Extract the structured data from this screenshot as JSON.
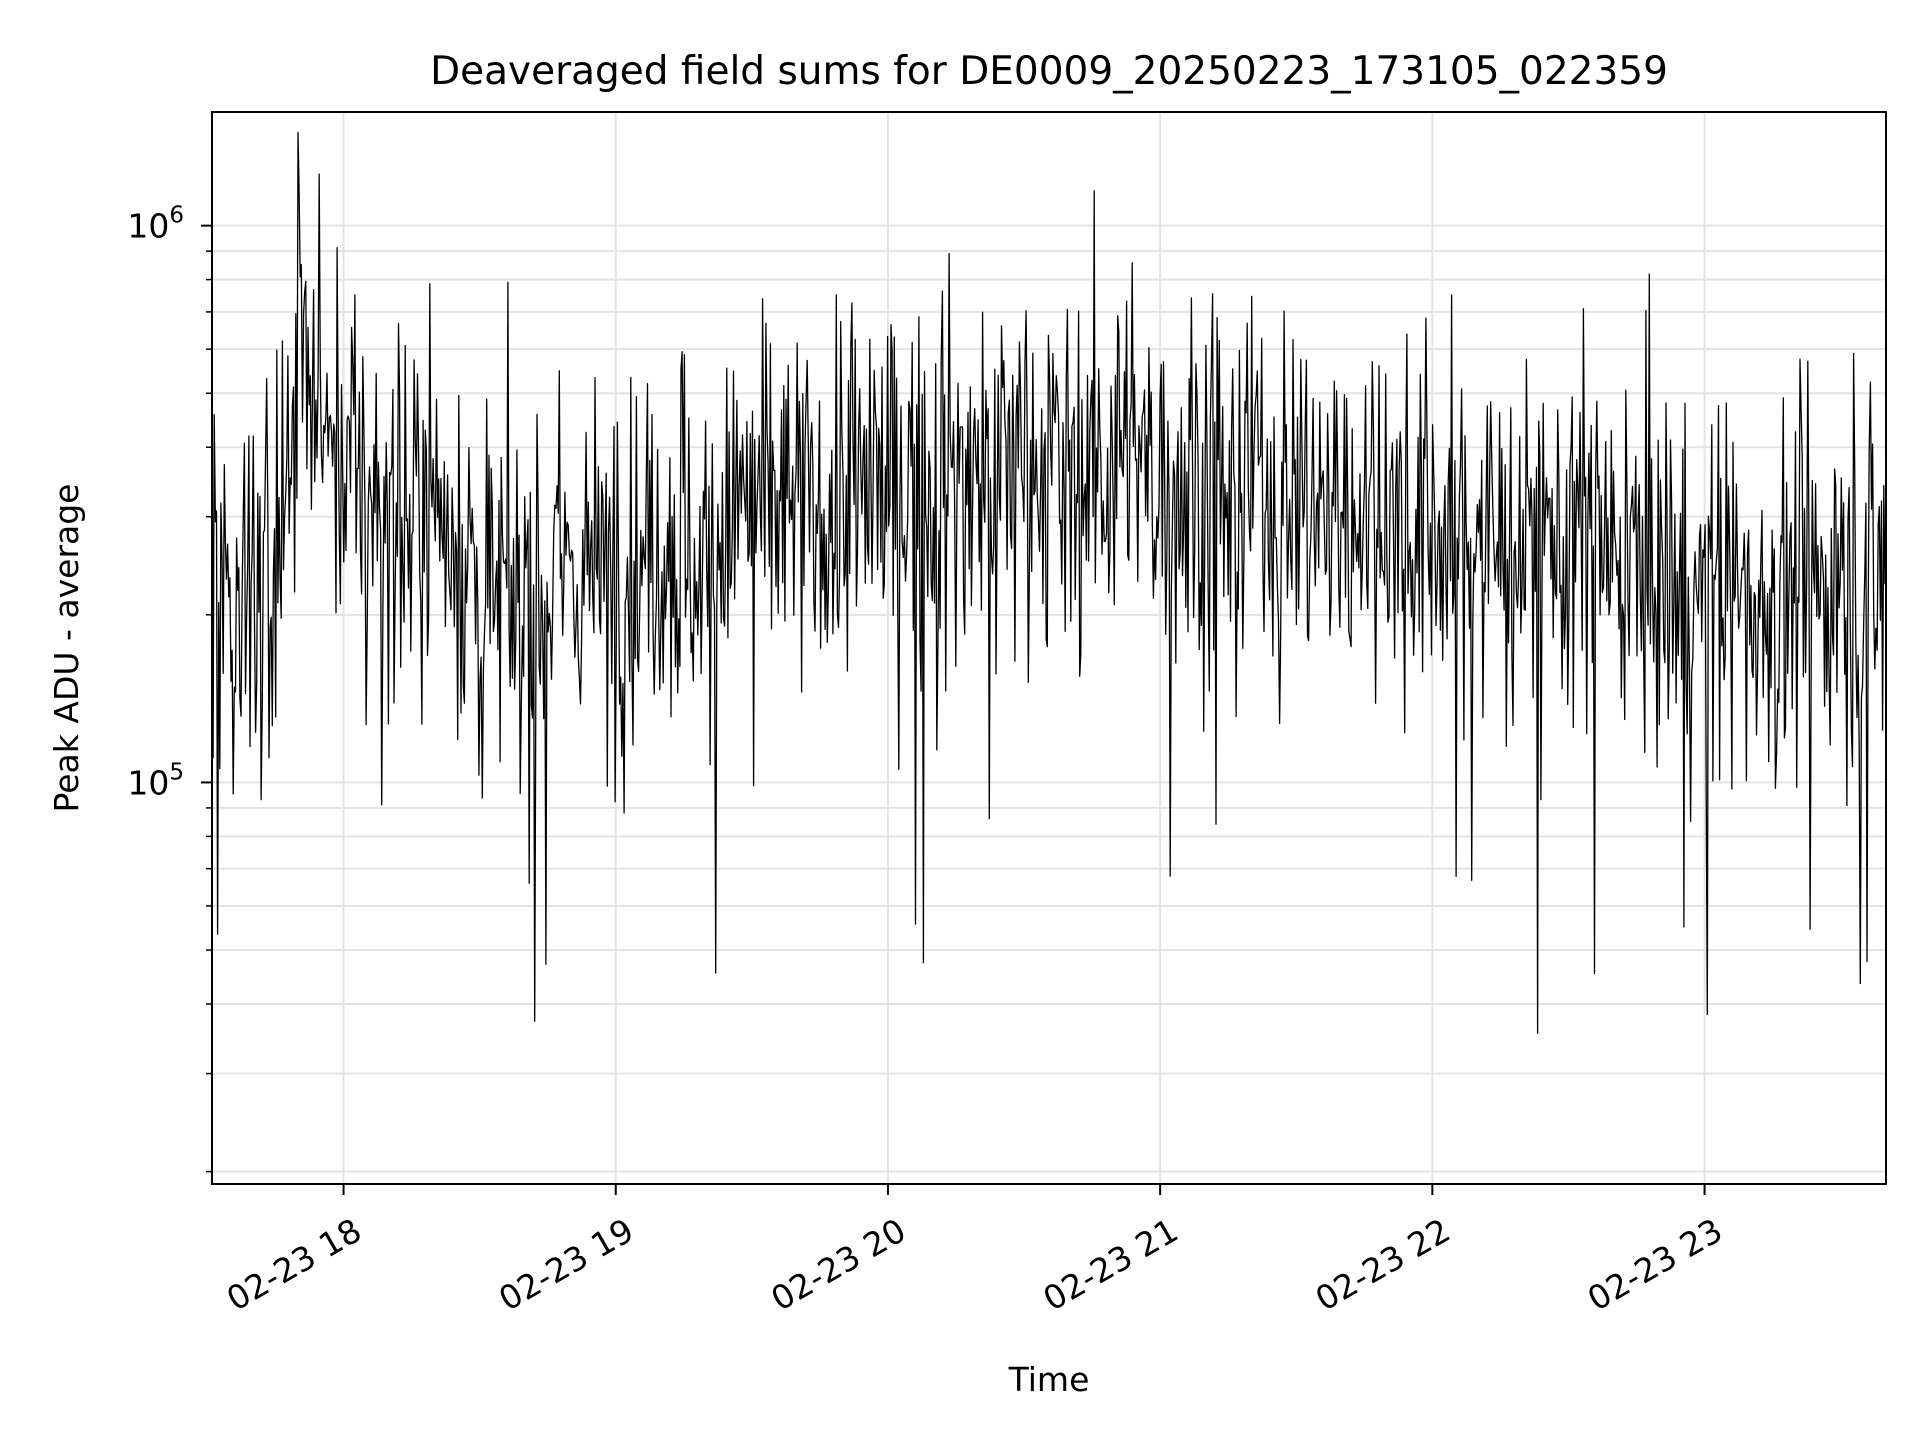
{
  "chart_data": {
    "type": "line",
    "title": "Deaveraged field sums for DE0009_20250223_173105_022359",
    "xlabel": "Time",
    "ylabel": "Peak ADU - average",
    "x_scale": "time",
    "y_scale": "log",
    "xlim": [
      "2025-02-23 17:31",
      "2025-02-23 23:40"
    ],
    "ylim": [
      19000,
      1600000
    ],
    "x_ticks": [
      {
        "value": "2025-02-23 18:00",
        "label": "02-23 18"
      },
      {
        "value": "2025-02-23 19:00",
        "label": "02-23 19"
      },
      {
        "value": "2025-02-23 20:00",
        "label": "02-23 20"
      },
      {
        "value": "2025-02-23 21:00",
        "label": "02-23 21"
      },
      {
        "value": "2025-02-23 22:00",
        "label": "02-23 22"
      },
      {
        "value": "2025-02-23 23:00",
        "label": "02-23 23"
      }
    ],
    "y_ticks": [
      {
        "value": 100000,
        "base": "10",
        "exp": "5"
      },
      {
        "value": 1000000,
        "base": "10",
        "exp": "6"
      }
    ],
    "grid": true,
    "legend": "none",
    "line_color": "#000000",
    "series": [
      {
        "x": [
          "2025-02-23 17:31",
          "2025-02-23 17:38",
          "2025-02-23 17:45",
          "2025-02-23 17:50",
          "2025-02-23 17:53",
          "2025-02-23 17:56",
          "2025-02-23 18:00",
          "2025-02-23 18:08",
          "2025-02-23 18:15",
          "2025-02-23 18:22",
          "2025-02-23 18:28",
          "2025-02-23 18:32",
          "2025-02-23 18:36",
          "2025-02-23 18:40",
          "2025-02-23 18:45",
          "2025-02-23 18:50",
          "2025-02-23 18:54",
          "2025-02-23 18:57",
          "2025-02-23 19:00",
          "2025-02-23 19:08",
          "2025-02-23 19:15",
          "2025-02-23 19:18",
          "2025-02-23 19:25",
          "2025-02-23 19:30",
          "2025-02-23 19:38",
          "2025-02-23 19:45",
          "2025-02-23 19:50",
          "2025-02-23 20:00",
          "2025-02-23 20:10",
          "2025-02-23 20:20",
          "2025-02-23 20:30",
          "2025-02-23 20:40",
          "2025-02-23 20:50",
          "2025-02-23 21:00",
          "2025-02-23 21:10",
          "2025-02-23 21:15",
          "2025-02-23 21:20",
          "2025-02-23 21:30",
          "2025-02-23 21:40",
          "2025-02-23 21:50",
          "2025-02-23 22:00",
          "2025-02-23 22:10",
          "2025-02-23 22:16",
          "2025-02-23 22:25",
          "2025-02-23 22:35",
          "2025-02-23 22:45",
          "2025-02-23 22:50",
          "2025-02-23 22:58",
          "2025-02-23 23:05",
          "2025-02-23 23:10",
          "2025-02-23 23:15",
          "2025-02-23 23:20",
          "2025-02-23 23:30",
          "2025-02-23 23:40"
        ],
        "values": [
          250000,
          220000,
          210000,
          650000,
          550000,
          420000,
          380000,
          320000,
          300000,
          330000,
          250000,
          210000,
          200000,
          220000,
          230000,
          250000,
          240000,
          230000,
          250000,
          270000,
          280000,
          230000,
          300000,
          320000,
          310000,
          300000,
          330000,
          340000,
          350000,
          360000,
          380000,
          370000,
          380000,
          360000,
          350000,
          330000,
          340000,
          330000,
          310000,
          300000,
          280000,
          270000,
          260000,
          280000,
          260000,
          240000,
          230000,
          220000,
          230000,
          220000,
          210000,
          220000,
          230000,
          210000
        ]
      }
    ]
  }
}
